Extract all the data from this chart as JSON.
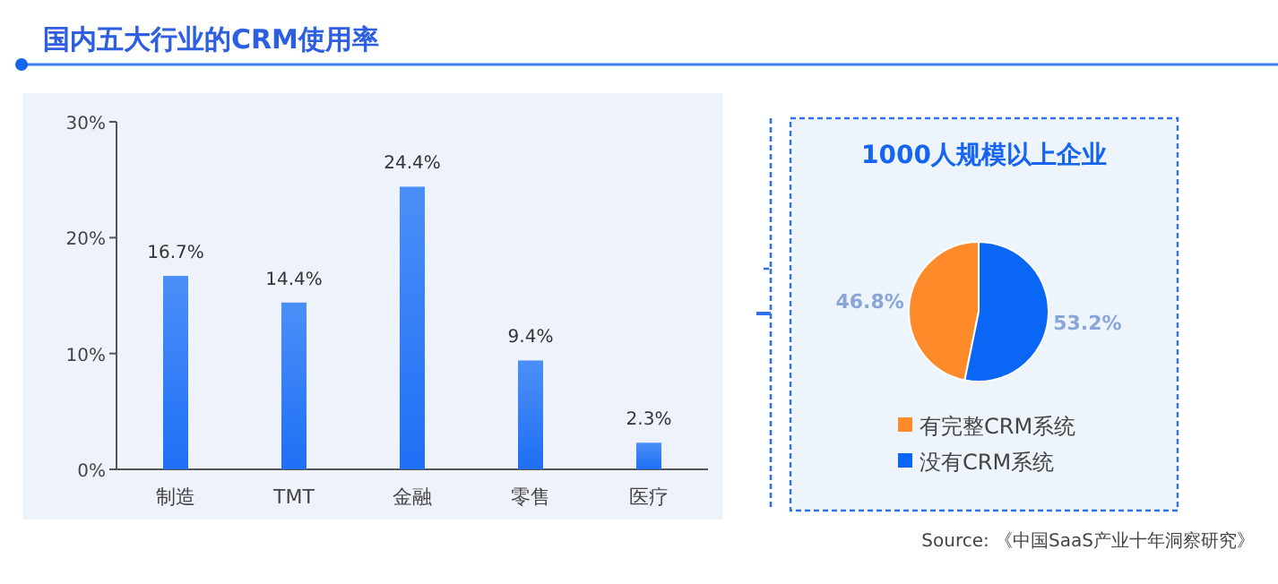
{
  "chart_data": [
    {
      "type": "bar",
      "title": "国内五大行业的CRM使用率",
      "categories": [
        "制造",
        "TMT",
        "金融",
        "零售",
        "医疗"
      ],
      "values": [
        16.7,
        14.4,
        24.4,
        9.4,
        2.3
      ],
      "color": "#1f6ff5",
      "value_labels": [
        "16.7%",
        "14.4%",
        "24.4%",
        "9.4%",
        "2.3%"
      ],
      "ylim": [
        0,
        30
      ],
      "yticks": [
        {
          "value": 0,
          "label": "0%"
        },
        {
          "value": 10,
          "label": "10%"
        },
        {
          "value": 20,
          "label": "20%"
        },
        {
          "value": 30,
          "label": "30%"
        }
      ],
      "grid": false
    },
    {
      "type": "pie",
      "title": "1000人规模以上企业",
      "categories": [
        "有完整CRM系统",
        "没有CRM系统"
      ],
      "values": [
        46.8,
        53.2
      ],
      "colors": [
        "#ff8a2a",
        "#0a66f5"
      ],
      "value_labels": [
        "46.8%",
        "53.2%"
      ],
      "legend": "bottom",
      "annotations": [
        "Source: 《中国SaaS产业十年洞察研究》"
      ]
    }
  ]
}
